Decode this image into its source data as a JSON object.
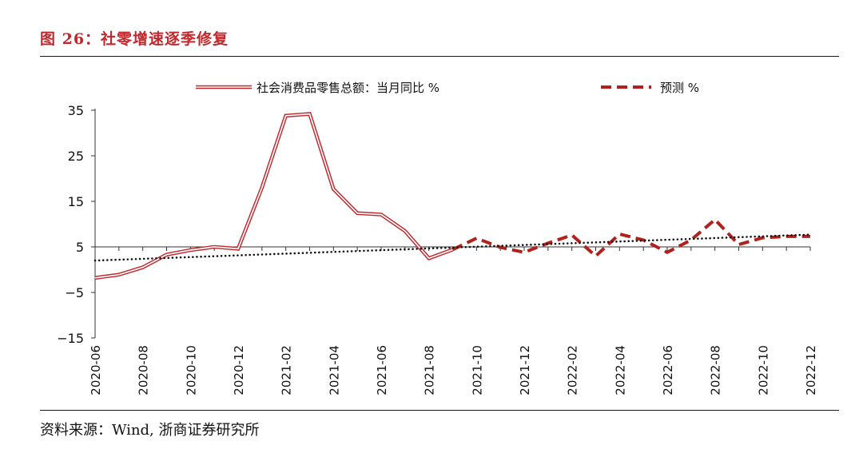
{
  "figure": {
    "title": "图 26：社零增速逐季修复",
    "source": "资料来源：Wind, 浙商证券研究所"
  },
  "colors": {
    "accent": "#c0282d",
    "actual": "#c0282d",
    "forecast": "#b2201c",
    "trend": "#111111"
  },
  "chart_data": {
    "type": "line",
    "title": "",
    "xlabel": "",
    "ylabel": "",
    "ylim": [
      -15,
      35
    ],
    "yticks": [
      35,
      25,
      15,
      5,
      -5,
      -15
    ],
    "grid": false,
    "legend_position": "top",
    "x": [
      "2020-06",
      "2020-07",
      "2020-08",
      "2020-09",
      "2020-10",
      "2020-11",
      "2020-12",
      "2021-01",
      "2021-02",
      "2021-03",
      "2021-04",
      "2021-05",
      "2021-06",
      "2021-07",
      "2021-08",
      "2021-09",
      "2021-10",
      "2021-11",
      "2021-12",
      "2022-01",
      "2022-02",
      "2022-03",
      "2022-04",
      "2022-05",
      "2022-06",
      "2022-07",
      "2022-08",
      "2022-09",
      "2022-10",
      "2022-11",
      "2022-12"
    ],
    "xtick_labels": [
      "2020-06",
      "2020-08",
      "2020-10",
      "2020-12",
      "2021-02",
      "2021-04",
      "2021-06",
      "2021-08",
      "2021-10",
      "2021-12",
      "2022-02",
      "2022-04",
      "2022-06",
      "2022-08",
      "2022-10",
      "2022-12"
    ],
    "series": [
      {
        "name": "社会消费品零售总额：当月同比 %",
        "style": "double-line",
        "values": [
          -1.8,
          -1.1,
          0.5,
          3.3,
          4.3,
          5.0,
          4.6,
          18.0,
          33.8,
          34.2,
          17.7,
          12.4,
          12.1,
          8.5,
          2.5,
          4.4,
          null,
          null,
          null,
          null,
          null,
          null,
          null,
          null,
          null,
          null,
          null,
          null,
          null,
          null,
          null
        ]
      },
      {
        "name": "预测 %",
        "style": "dashed",
        "values": [
          null,
          null,
          null,
          null,
          null,
          null,
          null,
          null,
          null,
          null,
          null,
          null,
          null,
          null,
          null,
          4.4,
          6.9,
          4.9,
          3.8,
          5.8,
          7.6,
          3.0,
          7.8,
          6.5,
          3.8,
          6.5,
          11.0,
          5.5,
          7.0,
          7.3,
          7.3
        ]
      },
      {
        "name": "",
        "style": "dotted-trend",
        "values": [
          2.0,
          null,
          null,
          null,
          null,
          null,
          null,
          null,
          null,
          null,
          null,
          null,
          null,
          null,
          null,
          null,
          null,
          null,
          null,
          null,
          null,
          null,
          null,
          null,
          null,
          null,
          null,
          null,
          null,
          null,
          7.7
        ]
      }
    ]
  }
}
